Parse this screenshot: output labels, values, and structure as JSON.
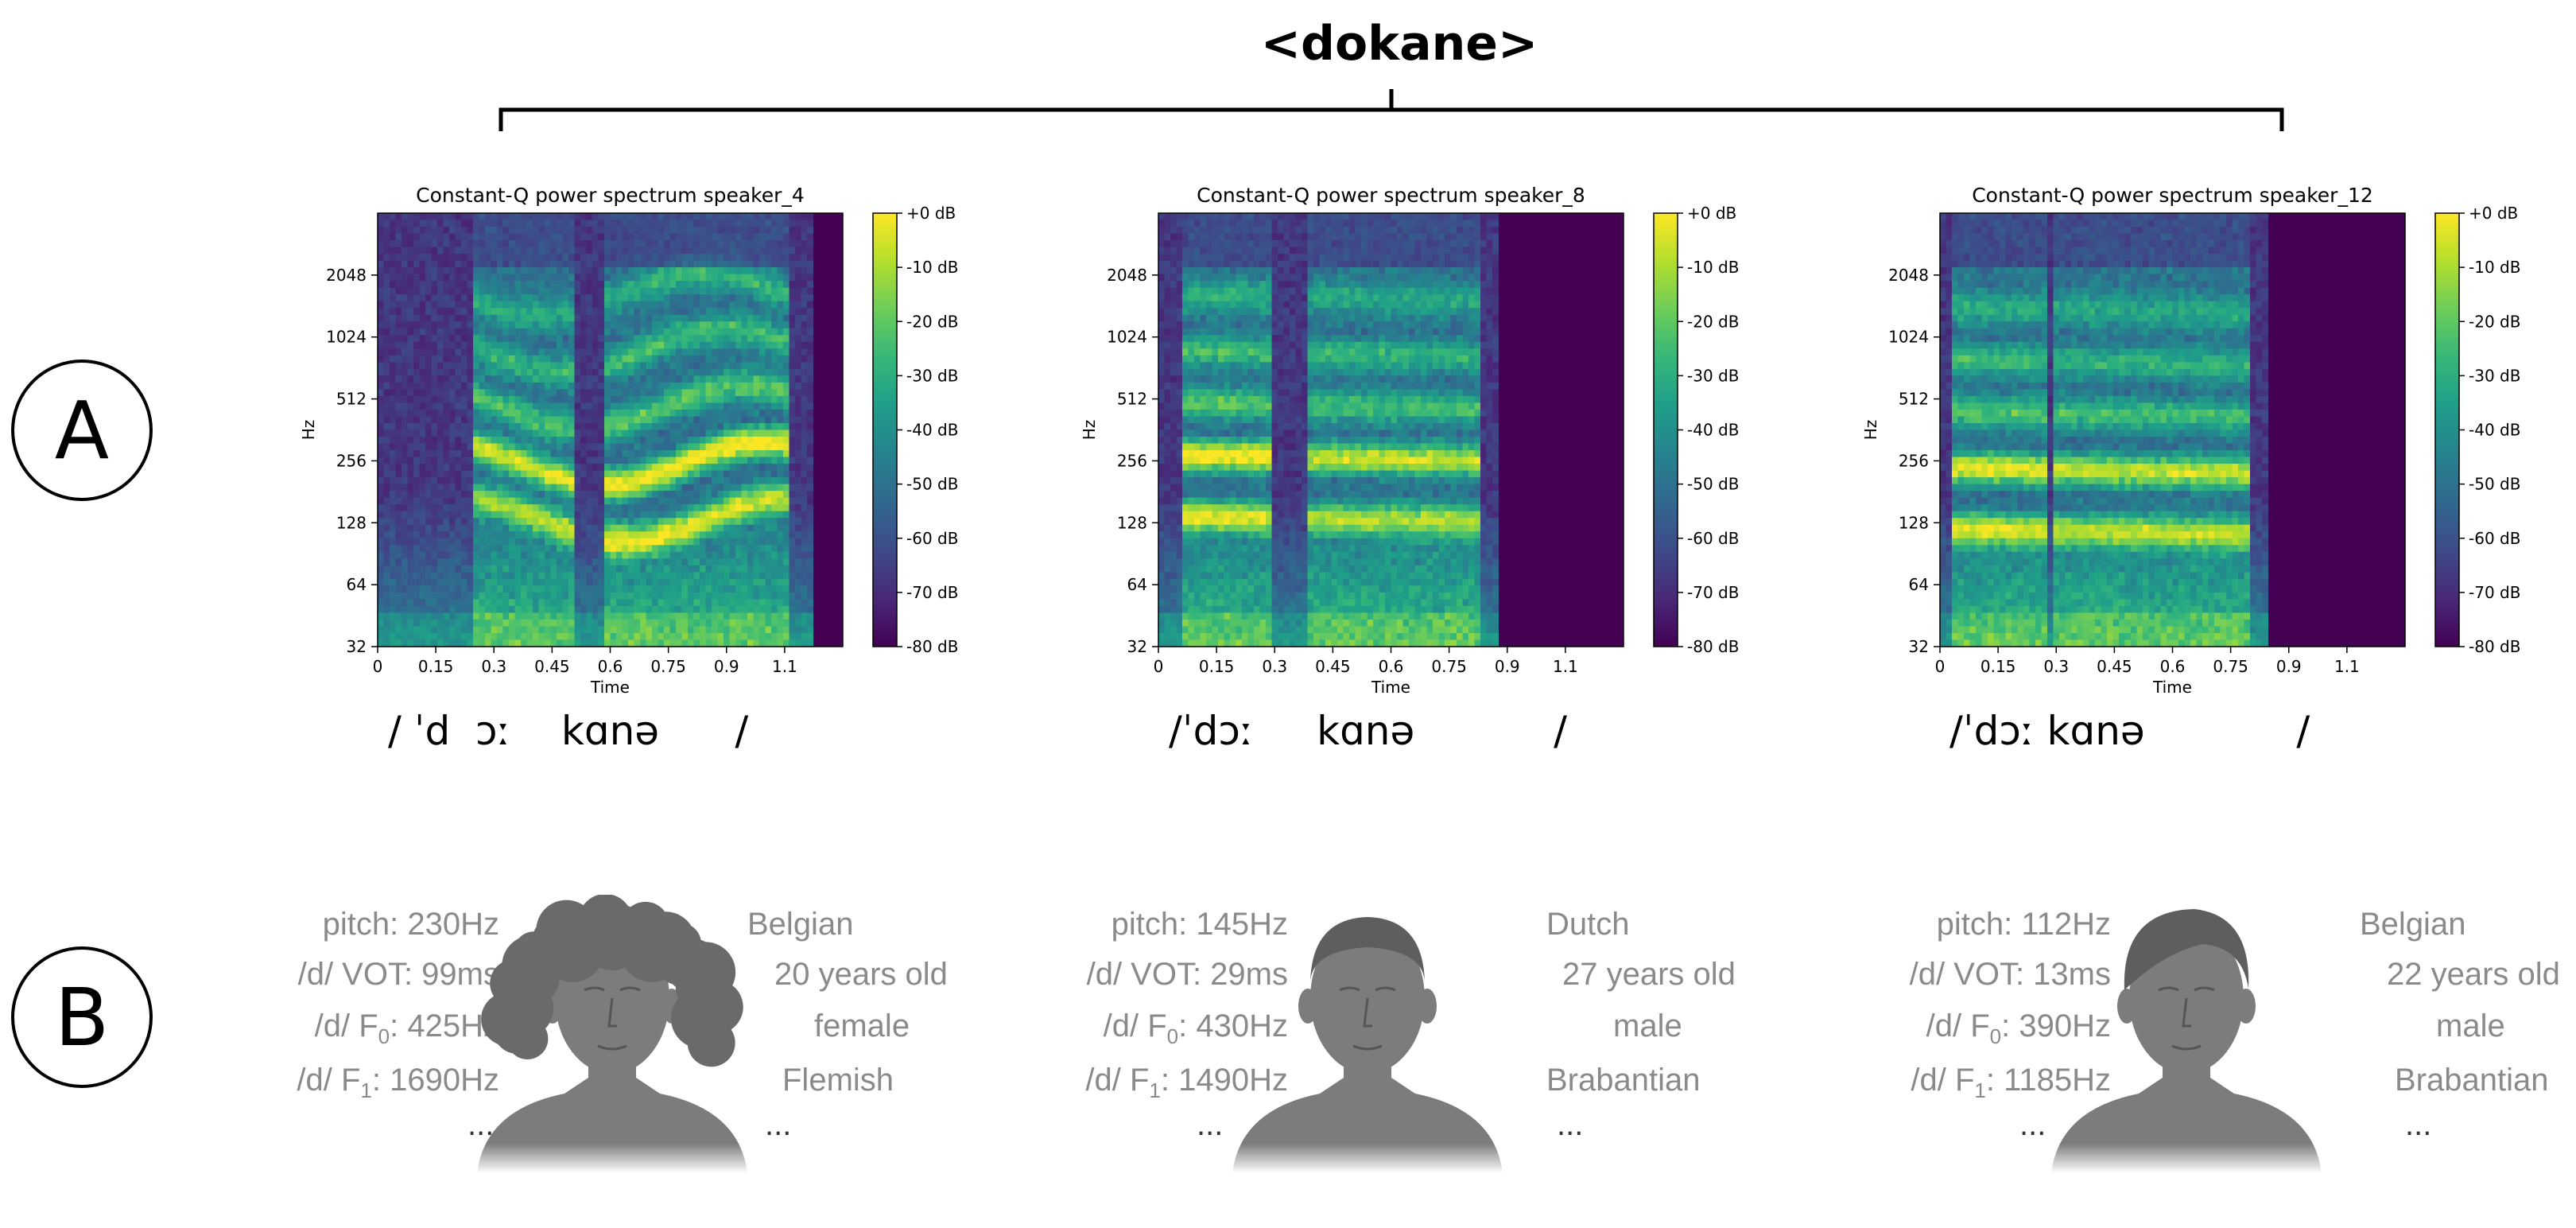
{
  "word": "<dokane>",
  "panel_labels": {
    "a": "A",
    "b": "B"
  },
  "spectrograms": [
    {
      "title": "Constant-Q power spectrum speaker_4",
      "ipa": "/ ˈd  ɔː    kɑnə      /",
      "pattern": 0
    },
    {
      "title": "Constant-Q power spectrum speaker_8",
      "ipa": "/ˈdɔː     kɑnə           /",
      "pattern": 1
    },
    {
      "title": "Constant-Q power spectrum speaker_12",
      "ipa": "/ˈdɔː kɑnə            /",
      "pattern": 2
    }
  ],
  "axes": {
    "xlabel": "Time",
    "ylabel": "Hz",
    "xticks": [
      "0",
      "0.15",
      "0.3",
      "0.45",
      "0.6",
      "0.75",
      "0.9",
      "1.1"
    ],
    "yticks": [
      "32",
      "64",
      "128",
      "256",
      "512",
      "1024",
      "2048"
    ],
    "colorbar_ticks": [
      "+0 dB",
      "-10 dB",
      "-20 dB",
      "-30 dB",
      "-40 dB",
      "-50 dB",
      "-60 dB",
      "-70 dB",
      "-80 dB"
    ]
  },
  "colors": {
    "viridis_low": "#440154",
    "viridis_mid": "#21918c",
    "viridis_high": "#fde725",
    "attr_gray": "#8a8a8a",
    "avatar_gray": "#7c7c7c"
  },
  "speakers": [
    {
      "left": [
        "pitch: 230Hz",
        "/d/ VOT: 99ms",
        "/d/ F",
        "/d/ F"
      ],
      "f0": ": 425Hz",
      "f1": ": 1690Hz",
      "right": [
        "Belgian",
        "20 years old",
        "female",
        "Flemish"
      ],
      "more": "...",
      "avatar": "female-curly-hair-icon"
    },
    {
      "left": [
        "pitch: 145Hz",
        "/d/ VOT: 29ms",
        "/d/ F",
        "/d/ F"
      ],
      "f0": ": 430Hz",
      "f1": ": 1490Hz",
      "right": [
        "Dutch",
        "27 years old",
        "male",
        "Brabantian"
      ],
      "more": "...",
      "avatar": "male-short-hair-icon"
    },
    {
      "left": [
        "pitch: 112Hz",
        "/d/ VOT: 13ms",
        "/d/ F",
        "/d/ F"
      ],
      "f0": ": 390Hz",
      "f1": ": 1185Hz",
      "right": [
        "Belgian",
        "22 years old",
        "male",
        "Brabantian"
      ],
      "more": "...",
      "avatar": "male-swept-hair-icon"
    }
  ],
  "subscripts": {
    "zero": "0",
    "one": "1"
  }
}
